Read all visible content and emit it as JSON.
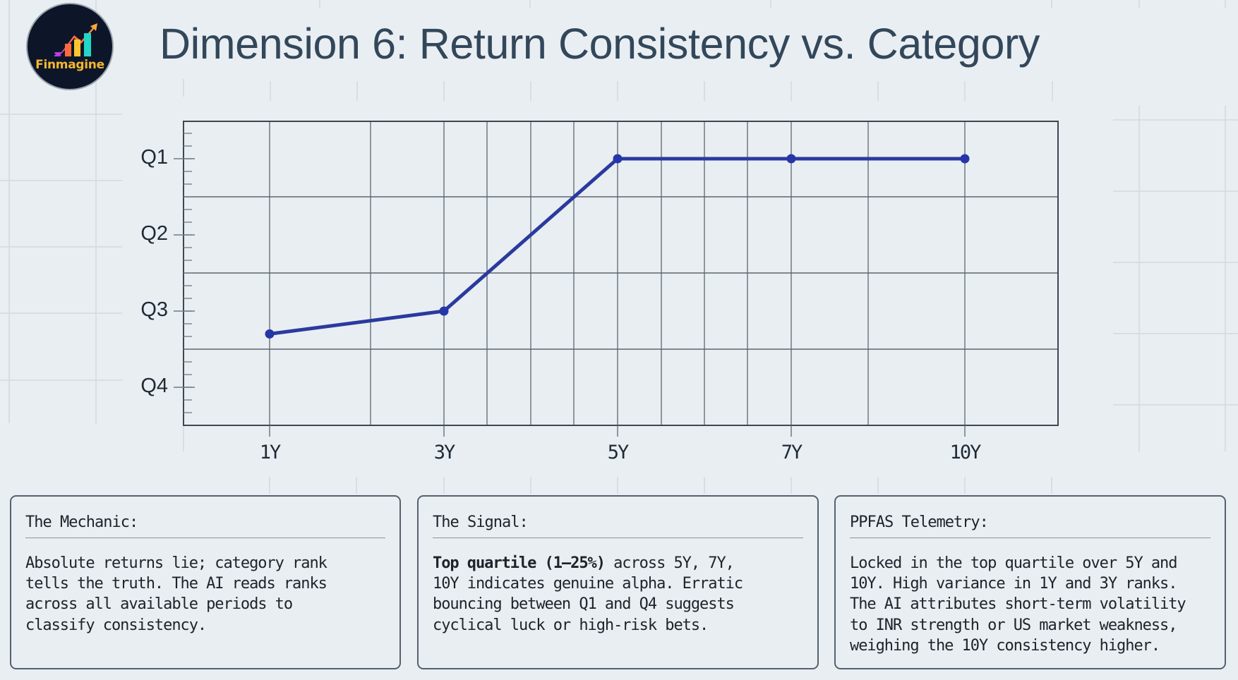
{
  "brand": {
    "name": "Finmagine",
    "logo_bg": "#0c1628",
    "logo_text_color": "#f4b731"
  },
  "header": {
    "title": "Dimension 6: Return Consistency vs. Category"
  },
  "colors": {
    "background": "#e9eef2",
    "title": "#33475b",
    "line": "#2a3a9e",
    "grid": "#5c6670",
    "card_border": "#556170"
  },
  "chart_data": {
    "type": "line",
    "title": "",
    "xlabel": "",
    "ylabel": "",
    "categories": [
      "1Y",
      "3Y",
      "5Y",
      "7Y",
      "10Y"
    ],
    "y_tick_labels": [
      "Q1",
      "Q2",
      "Q3",
      "Q4"
    ],
    "y_axis_inverted": true,
    "ylim": [
      0.5,
      4.5
    ],
    "grid": true,
    "legend": null,
    "series": [
      {
        "name": "Category quartile rank",
        "values": [
          3.3,
          3.0,
          1.0,
          1.0,
          1.0
        ],
        "color": "#2a3a9e"
      }
    ]
  },
  "cards": [
    {
      "heading": "The Mechanic:",
      "body_bold": "",
      "body": "Absolute returns lie; category rank\ntells the truth. The AI reads ranks\nacross all available periods to\nclassify consistency."
    },
    {
      "heading": "The Signal:",
      "body_bold": "Top quartile (1–25%)",
      "body": " across 5Y, 7Y,\n10Y indicates genuine alpha. Erratic\nbouncing between Q1 and Q4 suggests\ncyclical luck or high-risk bets."
    },
    {
      "heading": "PPFAS Telemetry:",
      "body_bold": "",
      "body": "Locked in the top quartile over 5Y and\n10Y. High variance in 1Y and 3Y ranks.\nThe AI attributes short-term volatility\nto INR strength or US market weakness,\nweighing the 10Y consistency higher."
    }
  ]
}
